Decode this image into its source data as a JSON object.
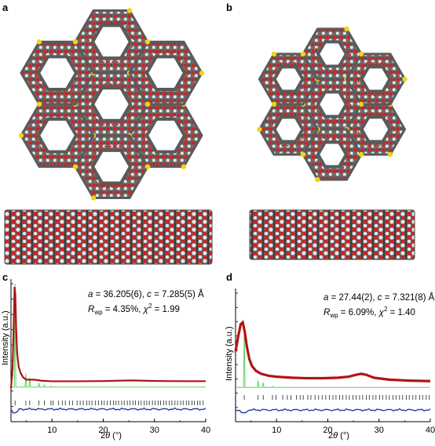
{
  "panels": {
    "a": "a",
    "b": "b",
    "c": "c",
    "d": "d"
  },
  "colors": {
    "carbon": "#5a5a5a",
    "oxygen": "#d81e1e",
    "hydrogen": "#e8e8ec",
    "sulfur": "#f2d313",
    "observed": "#c0151b",
    "calculated_line": "#8e1a14",
    "bragg": "#5fcf5f",
    "difference": "#2b3f9e",
    "ticks": "#222222"
  },
  "chart_data": [
    {
      "panel": "c",
      "type": "line",
      "title": "",
      "xlabel_prefix": "2",
      "xlabel_theta": "θ",
      "xlabel_unit": " (°)",
      "ylabel": "Intensity (a.u.)",
      "xlim": [
        2,
        40
      ],
      "xticks": [
        "10",
        "20",
        "30",
        "40"
      ],
      "param_a_sym": "a",
      "param_a_val": " = 36.205(6), ",
      "param_c_sym": "c",
      "param_c_val": " = 7.285(5) Å",
      "param_r_sym": "R",
      "param_r_sub": "wp",
      "param_r_val": " = 4.35%, ",
      "param_chi_sym": "χ",
      "param_chi_val": " = 1.99",
      "observed": [
        [
          2.0,
          0.02
        ],
        [
          2.3,
          0.2
        ],
        [
          2.5,
          0.55
        ],
        [
          2.7,
          0.97
        ],
        [
          2.85,
          0.9
        ],
        [
          3.0,
          0.6
        ],
        [
          3.2,
          0.35
        ],
        [
          3.5,
          0.22
        ],
        [
          3.9,
          0.16
        ],
        [
          4.4,
          0.12
        ],
        [
          5.0,
          0.1
        ],
        [
          5.6,
          0.1
        ],
        [
          6.5,
          0.1
        ],
        [
          8,
          0.09
        ],
        [
          10,
          0.085
        ],
        [
          15,
          0.085
        ],
        [
          20,
          0.087
        ],
        [
          24,
          0.092
        ],
        [
          26,
          0.093
        ],
        [
          28,
          0.09
        ],
        [
          32,
          0.087
        ],
        [
          36,
          0.086
        ],
        [
          40,
          0.086
        ]
      ],
      "bragg_peaks": [
        [
          2.8,
          1.0
        ],
        [
          4.9,
          0.16
        ],
        [
          5.65,
          0.12
        ],
        [
          7.45,
          0.07
        ],
        [
          8.5,
          0.05
        ],
        [
          9.8,
          0.04
        ]
      ],
      "reflections": [
        2.8,
        4.9,
        5.65,
        7.45,
        8.5,
        9.8,
        10.2,
        11.3,
        12.0,
        12.6,
        13.4,
        14.0,
        14.9,
        15.5,
        16.1,
        16.8,
        17.3,
        17.8,
        18.5,
        19.1,
        19.7,
        20.2,
        20.8,
        21.4,
        22.0,
        22.5,
        23.0,
        23.6,
        24.1,
        24.7,
        25.2,
        25.8,
        26.3,
        26.9,
        27.4,
        28.0,
        28.5,
        29.0,
        29.6,
        30.1,
        30.7,
        31.2,
        31.8,
        32.3,
        32.9,
        33.4,
        34.0,
        34.5,
        35.1,
        35.6,
        36.2,
        36.7,
        37.3,
        37.8,
        38.4,
        38.9,
        39.5
      ]
    },
    {
      "panel": "d",
      "type": "line",
      "title": "",
      "xlabel_prefix": "2",
      "xlabel_theta": "θ",
      "xlabel_unit": " (°)",
      "ylabel": "Intensity (a.u.)",
      "xlim": [
        2,
        40
      ],
      "xticks": [
        "10",
        "20",
        "30",
        "40"
      ],
      "param_a_sym": "a",
      "param_a_val": " = 27.44(2), ",
      "param_c_sym": "c",
      "param_c_val": " = 7.321(8) Å",
      "param_r_sym": "R",
      "param_r_sub": "wp",
      "param_r_val": " = 6.09%, ",
      "param_chi_sym": "χ",
      "param_chi_val": " = 1.40",
      "observed": [
        [
          2.0,
          0.4
        ],
        [
          2.5,
          0.55
        ],
        [
          3.0,
          0.68
        ],
        [
          3.4,
          0.7
        ],
        [
          3.8,
          0.6
        ],
        [
          4.2,
          0.45
        ],
        [
          4.7,
          0.32
        ],
        [
          5.2,
          0.25
        ],
        [
          6,
          0.2
        ],
        [
          7,
          0.17
        ],
        [
          8.5,
          0.15
        ],
        [
          10,
          0.14
        ],
        [
          13,
          0.13
        ],
        [
          16,
          0.125
        ],
        [
          19,
          0.125
        ],
        [
          22,
          0.13
        ],
        [
          24,
          0.14
        ],
        [
          25.5,
          0.16
        ],
        [
          26.5,
          0.17
        ],
        [
          27.5,
          0.16
        ],
        [
          29,
          0.13
        ],
        [
          32,
          0.11
        ],
        [
          36,
          0.1
        ],
        [
          40,
          0.095
        ]
      ],
      "bragg_peaks": [
        [
          3.7,
          0.6
        ],
        [
          6.4,
          0.1
        ],
        [
          7.4,
          0.08
        ],
        [
          9.2,
          0.04
        ]
      ],
      "reflections": [
        3.7,
        6.4,
        7.4,
        9.2,
        9.9,
        11.2,
        12.1,
        12.8,
        13.9,
        14.6,
        15.2,
        16.1,
        16.7,
        17.5,
        18.2,
        18.9,
        19.6,
        20.3,
        21.0,
        21.6,
        22.3,
        22.9,
        23.6,
        24.2,
        24.9,
        25.5,
        26.2,
        26.8,
        27.5,
        28.1,
        28.8,
        29.4,
        30.1,
        30.7,
        31.4,
        32.0,
        32.7,
        33.3,
        34.0,
        34.6,
        35.3,
        35.9,
        36.6,
        37.2,
        37.9,
        38.5,
        39.2,
        39.8
      ]
    }
  ]
}
